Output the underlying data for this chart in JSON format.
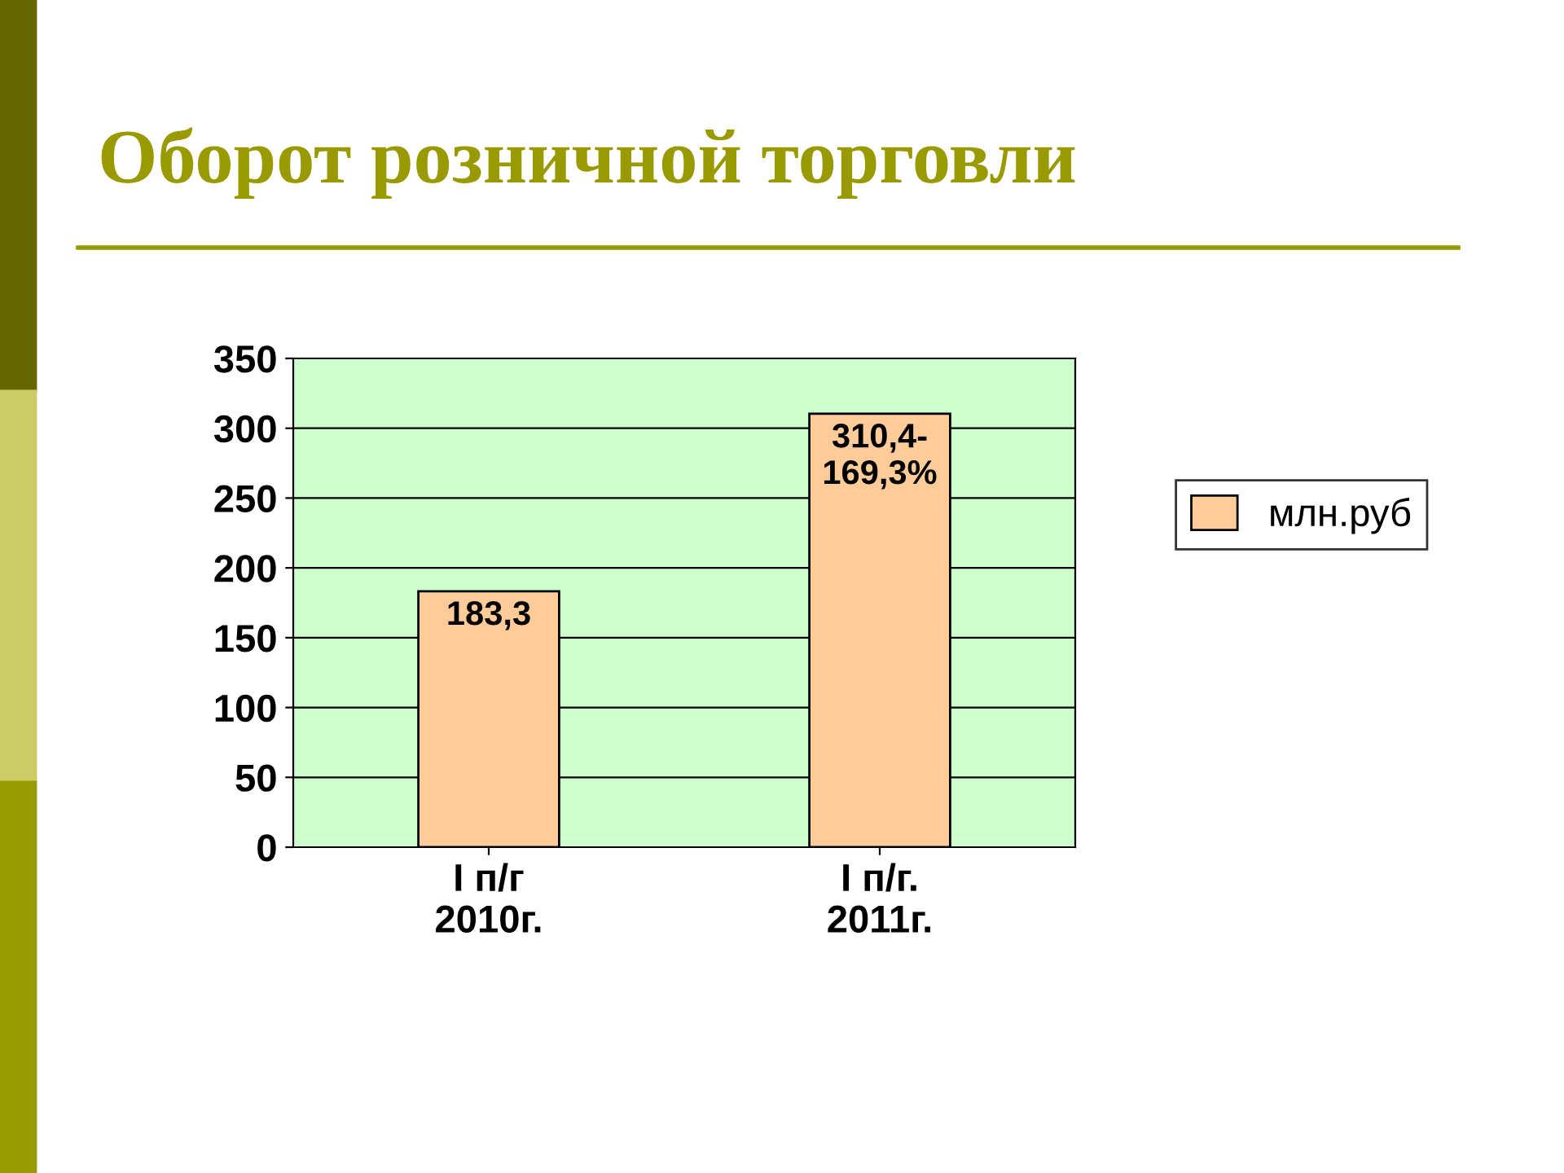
{
  "chart_data": {
    "type": "bar",
    "title": "Оборот розничной торговли",
    "categories": [
      "I п/г\n2010г.",
      "I п/г.\n2011г."
    ],
    "series": [
      {
        "name": "млн.руб",
        "color": "#ffcc99",
        "values": [
          183.3,
          310.4
        ],
        "value_labels": [
          "183,3",
          "310,4-\n169,3%"
        ]
      }
    ],
    "ylim": [
      0,
      350
    ],
    "yticks": [
      0,
      50,
      100,
      150,
      200,
      250,
      300,
      350
    ],
    "grid": "y",
    "legend": "right"
  }
}
